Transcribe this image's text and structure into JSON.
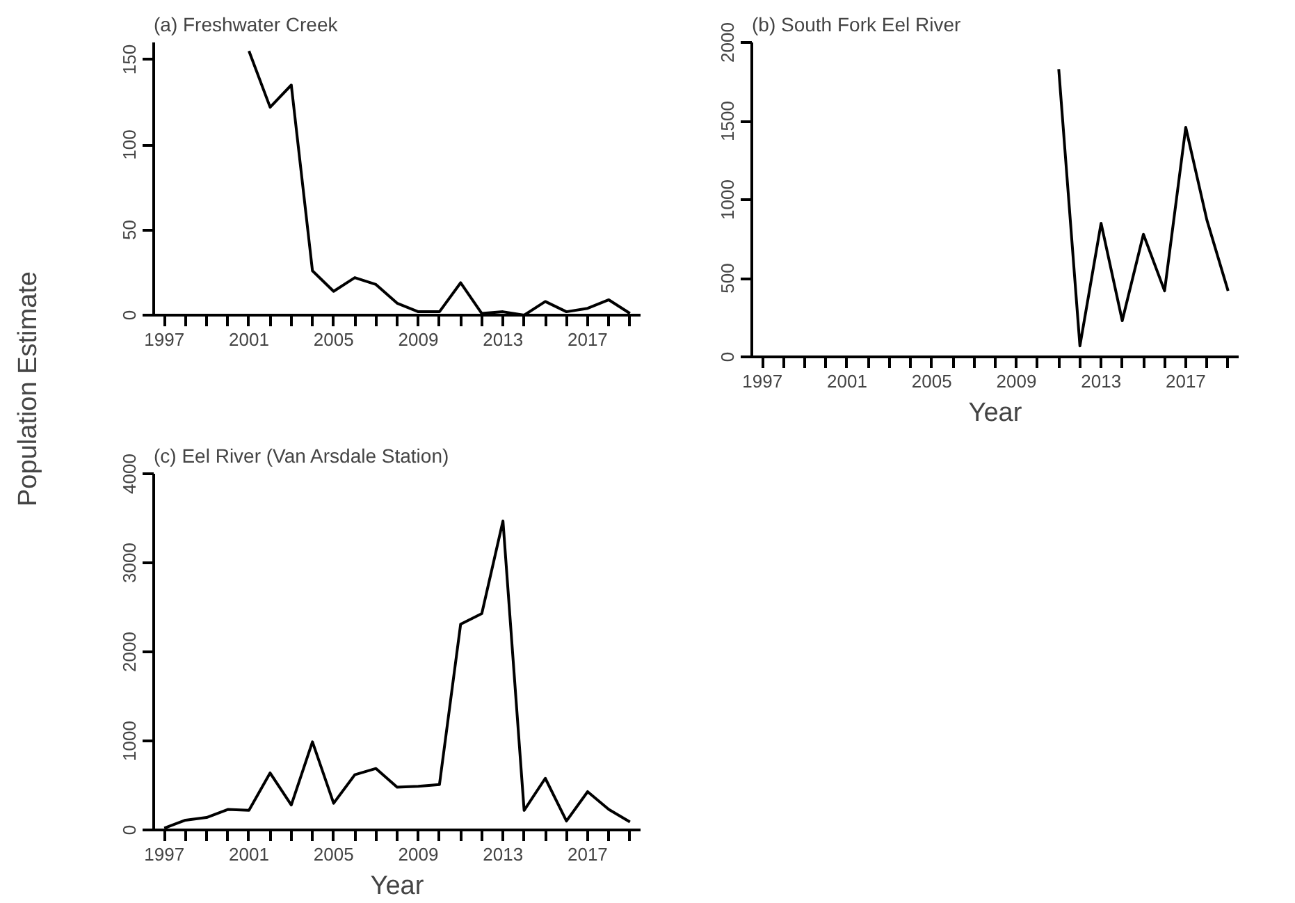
{
  "chart_data": [
    {
      "type": "line",
      "title": "(a) Freshwater Creek",
      "ylabel": "Population Estimate",
      "x": [
        2001,
        2002,
        2003,
        2004,
        2005,
        2006,
        2007,
        2008,
        2009,
        2010,
        2011,
        2012,
        2013,
        2014,
        2015,
        2016,
        2017,
        2018,
        2019
      ],
      "series": [
        {
          "color": "#000000",
          "values": [
            155,
            122,
            135,
            26,
            14,
            22,
            18,
            7,
            2,
            2,
            19,
            1,
            2,
            0,
            8,
            2,
            4,
            9,
            1
          ]
        }
      ],
      "xlim": [
        1996.5,
        2019.5
      ],
      "ylim": [
        0,
        160
      ],
      "yticks": [
        0,
        50,
        100,
        150
      ],
      "xticks": [
        1997,
        {
          "value": 1998,
          "label": null
        },
        {
          "value": 1999,
          "label": null
        },
        {
          "value": 2000,
          "label": null
        },
        2001,
        {
          "value": 2002,
          "label": null
        },
        {
          "value": 2003,
          "label": null
        },
        {
          "value": 2004,
          "label": null
        },
        2005,
        {
          "value": 2006,
          "label": null
        },
        {
          "value": 2007,
          "label": null
        },
        {
          "value": 2008,
          "label": null
        },
        2009,
        {
          "value": 2010,
          "label": null
        },
        {
          "value": 2011,
          "label": null
        },
        {
          "value": 2012,
          "label": null
        },
        2013,
        {
          "value": 2014,
          "label": null
        },
        {
          "value": 2015,
          "label": null
        },
        {
          "value": 2016,
          "label": null
        },
        2017,
        {
          "value": 2018,
          "label": null
        },
        {
          "value": 2019,
          "label": null
        }
      ],
      "grid": false,
      "line_style": "solid"
    },
    {
      "type": "line",
      "title": "(b) South Fork Eel River",
      "xlabel": "Year",
      "x": [
        2011,
        2012,
        2013,
        2014,
        2015,
        2016,
        2017,
        2018,
        2019
      ],
      "series": [
        {
          "color": "#000000",
          "values": [
            1830,
            70,
            850,
            230,
            780,
            420,
            1460,
            870,
            420
          ]
        }
      ],
      "xlim": [
        1996.5,
        2019.5
      ],
      "ylim": [
        0,
        2000
      ],
      "yticks": [
        0,
        500,
        1000,
        1500,
        2000
      ],
      "xticks": [
        1997,
        {
          "value": 1998,
          "label": null
        },
        {
          "value": 1999,
          "label": null
        },
        {
          "value": 2000,
          "label": null
        },
        2001,
        {
          "value": 2002,
          "label": null
        },
        {
          "value": 2003,
          "label": null
        },
        {
          "value": 2004,
          "label": null
        },
        2005,
        {
          "value": 2006,
          "label": null
        },
        {
          "value": 2007,
          "label": null
        },
        {
          "value": 2008,
          "label": null
        },
        2009,
        {
          "value": 2010,
          "label": null
        },
        {
          "value": 2011,
          "label": null
        },
        {
          "value": 2012,
          "label": null
        },
        2013,
        {
          "value": 2014,
          "label": null
        },
        {
          "value": 2015,
          "label": null
        },
        {
          "value": 2016,
          "label": null
        },
        2017,
        {
          "value": 2018,
          "label": null
        },
        {
          "value": 2019,
          "label": null
        }
      ],
      "grid": false,
      "line_style": "solid"
    },
    {
      "type": "line",
      "title": "(c) Eel River (Van Arsdale Station)",
      "xlabel": "Year",
      "x": [
        1997,
        1998,
        1999,
        2000,
        2001,
        2002,
        2003,
        2004,
        2005,
        2006,
        2007,
        2008,
        2009,
        2010,
        2011,
        2012,
        2013,
        2014,
        2015,
        2016,
        2017,
        2018,
        2019
      ],
      "series": [
        {
          "color": "#000000",
          "values": [
            20,
            110,
            140,
            230,
            220,
            640,
            280,
            990,
            300,
            620,
            690,
            480,
            490,
            510,
            2310,
            2430,
            3470,
            220,
            580,
            100,
            430,
            230,
            90
          ]
        }
      ],
      "xlim": [
        1996.5,
        2019.5
      ],
      "ylim": [
        0,
        4000
      ],
      "yticks": [
        0,
        1000,
        2000,
        3000,
        4000
      ],
      "xticks": [
        1997,
        {
          "value": 1998,
          "label": null
        },
        {
          "value": 1999,
          "label": null
        },
        {
          "value": 2000,
          "label": null
        },
        2001,
        {
          "value": 2002,
          "label": null
        },
        {
          "value": 2003,
          "label": null
        },
        {
          "value": 2004,
          "label": null
        },
        2005,
        {
          "value": 2006,
          "label": null
        },
        {
          "value": 2007,
          "label": null
        },
        {
          "value": 2008,
          "label": null
        },
        2009,
        {
          "value": 2010,
          "label": null
        },
        {
          "value": 2011,
          "label": null
        },
        {
          "value": 2012,
          "label": null
        },
        2013,
        {
          "value": 2014,
          "label": null
        },
        {
          "value": 2015,
          "label": null
        },
        {
          "value": 2016,
          "label": null
        },
        2017,
        {
          "value": 2018,
          "label": null
        },
        {
          "value": 2019,
          "label": null
        }
      ],
      "grid": false,
      "line_style": "solid"
    }
  ]
}
